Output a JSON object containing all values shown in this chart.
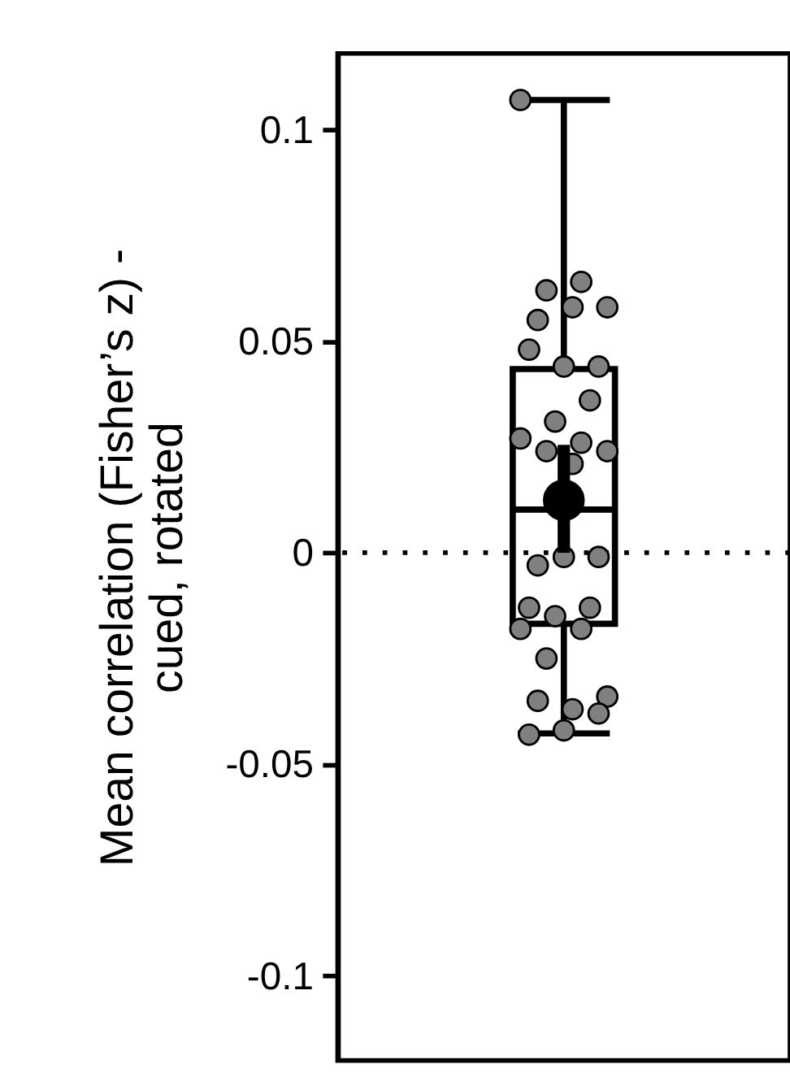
{
  "chart_data": {
    "type": "box",
    "ylabel": "Mean correlation (Fisher’s z) -\ncued, rotated",
    "categories": [
      null
    ],
    "boxes": [
      {
        "low": -0.0427,
        "q1": -0.0168,
        "median": 0.0102,
        "q3": 0.0434,
        "high": 0.107
      }
    ],
    "series": [
      {
        "type": "scatter",
        "color": "#808080",
        "marker": "circle",
        "x": [
          null,
          null,
          null,
          null,
          null,
          null,
          null,
          null,
          null,
          null,
          null,
          null,
          null,
          null,
          null,
          null,
          null,
          null,
          null,
          null,
          null,
          null,
          null,
          null,
          null,
          null,
          null,
          null,
          null,
          null,
          null
        ],
        "values": [
          0.107,
          0.064,
          0.062,
          0.058,
          0.058,
          0.055,
          0.044,
          0.044,
          0.048,
          0.036,
          0.031,
          0.027,
          0.026,
          0.024,
          0.024,
          0.021,
          -0.003,
          -0.001,
          -0.001,
          -0.013,
          -0.013,
          -0.015,
          -0.018,
          -0.018,
          -0.025,
          -0.034,
          -0.037,
          -0.035,
          -0.038,
          -0.042,
          -0.043
        ]
      },
      {
        "type": "scatter",
        "color": "#000000",
        "marker": "circle",
        "values": [
          0.0124
        ],
        "errors": [
          [
            0,
            0.0255
          ]
        ]
      }
    ],
    "ref_lines": [
      {
        "axis": "y",
        "value": 0,
        "line_style": "dotted",
        "color": "#000000"
      }
    ],
    "ylim": [
      -0.12,
      0.118
    ],
    "yticks": [
      -0.1,
      -0.05,
      0,
      0.05,
      0.1
    ],
    "tick_labels": "y",
    "grid": false
  }
}
